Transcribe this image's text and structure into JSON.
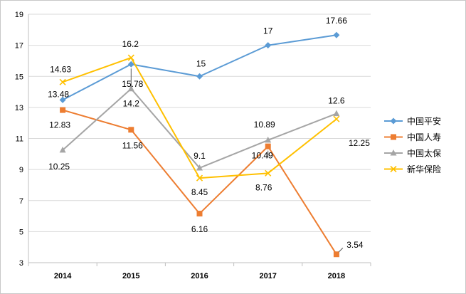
{
  "chart_data": {
    "type": "line",
    "categories": [
      "2014",
      "2015",
      "2016",
      "2017",
      "2018"
    ],
    "ylim": [
      3,
      19
    ],
    "yticks": [
      3,
      5,
      7,
      9,
      11,
      13,
      15,
      17,
      19
    ],
    "grid": "horizontal",
    "legend": "right",
    "series": [
      {
        "name": "中国平安",
        "color": "#5B9BD5",
        "marker": "diamond",
        "values": [
          13.48,
          15.78,
          15,
          17,
          17.66
        ]
      },
      {
        "name": "中国人寿",
        "color": "#ED7D31",
        "marker": "square",
        "values": [
          12.83,
          11.56,
          6.16,
          10.49,
          3.54
        ]
      },
      {
        "name": "中国太保",
        "color": "#A5A5A5",
        "marker": "triangle",
        "values": [
          10.25,
          14.2,
          9.1,
          10.89,
          12.6
        ]
      },
      {
        "name": "新华保险",
        "color": "#FFC000",
        "marker": "x",
        "values": [
          14.63,
          16.2,
          8.45,
          8.76,
          12.25
        ]
      }
    ]
  }
}
